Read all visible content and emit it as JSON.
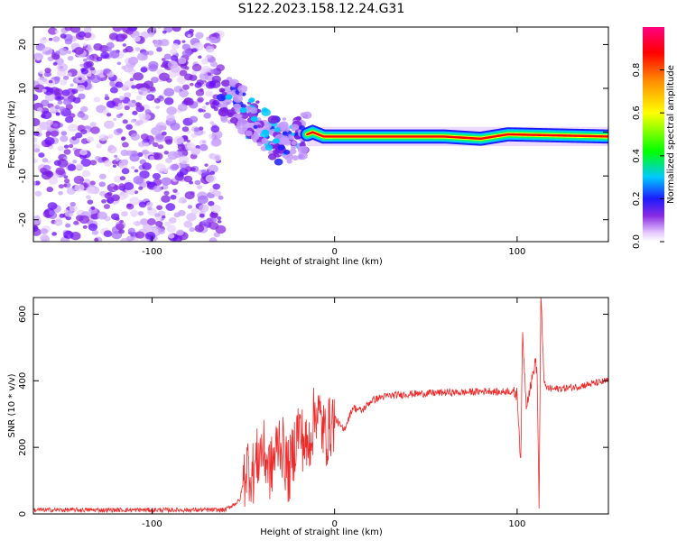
{
  "title": "S122.2023.158.12.24.G31",
  "chart_data": [
    {
      "type": "heatmap",
      "xlabel": "Height of straight line (km)",
      "ylabel": "Frequency (Hz)",
      "xlim": [
        -165,
        150
      ],
      "ylim": [
        -25,
        24
      ],
      "xticks": [
        -100,
        0,
        100
      ],
      "yticks": [
        -20,
        -10,
        0,
        10,
        20
      ],
      "colorbar": {
        "label": "Normalized spectral amplitude",
        "range": [
          0,
          1
        ],
        "ticks": [
          0.0,
          0.2,
          0.4,
          0.6,
          0.8
        ]
      },
      "features": {
        "noise_region_km": [
          -165,
          -62
        ],
        "transition_region_km": [
          -62,
          -15
        ],
        "ridge_frequency_hz": -1.0,
        "ridge_start_km": -15,
        "ridge_end_km": 150
      },
      "ridge_path": [
        {
          "x": -62,
          "y": 8
        },
        {
          "x": -55,
          "y": 7
        },
        {
          "x": -48,
          "y": 4
        },
        {
          "x": -42,
          "y": 2
        },
        {
          "x": -36,
          "y": -1
        },
        {
          "x": -30,
          "y": -2
        },
        {
          "x": -24,
          "y": -2
        },
        {
          "x": -18,
          "y": -1
        },
        {
          "x": -12,
          "y": 0
        },
        {
          "x": -6,
          "y": -1
        },
        {
          "x": 0,
          "y": -1
        },
        {
          "x": 60,
          "y": -1
        },
        {
          "x": 80,
          "y": -1.5
        },
        {
          "x": 95,
          "y": -0.5
        },
        {
          "x": 150,
          "y": -1
        }
      ]
    },
    {
      "type": "line",
      "xlabel": "Height of straight line (km)",
      "ylabel": "SNR (10 * v/v)",
      "xlim": [
        -165,
        150
      ],
      "ylim": [
        0,
        650
      ],
      "xticks": [
        -100,
        0,
        100
      ],
      "yticks": [
        0,
        200,
        400,
        600
      ],
      "series": [
        {
          "color": "#ee2b2b",
          "x": [
            -165,
            -60,
            -52,
            -48,
            -45,
            -40,
            -35,
            -30,
            -25,
            -20,
            -15,
            -10,
            -5,
            0,
            5,
            10,
            15,
            20,
            25,
            30,
            40,
            50,
            60,
            70,
            80,
            85,
            90,
            95,
            100,
            101,
            102,
            103,
            105,
            108,
            110,
            111,
            112,
            113,
            115,
            120,
            130,
            140,
            150
          ],
          "y": [
            12,
            12,
            40,
            150,
            120,
            200,
            130,
            230,
            120,
            260,
            190,
            320,
            230,
            290,
            250,
            320,
            310,
            340,
            350,
            355,
            360,
            362,
            365,
            365,
            368,
            370,
            365,
            370,
            360,
            260,
            150,
            540,
            330,
            400,
            460,
            420,
            30,
            650,
            380,
            375,
            380,
            390,
            400
          ]
        }
      ],
      "annotations": {
        "low_snr_region_km": [
          -165,
          -50
        ],
        "oscillation_region_km": [
          -50,
          0
        ],
        "plateau_snr": 370,
        "spikes_km": [
          102,
          112
        ]
      }
    }
  ]
}
